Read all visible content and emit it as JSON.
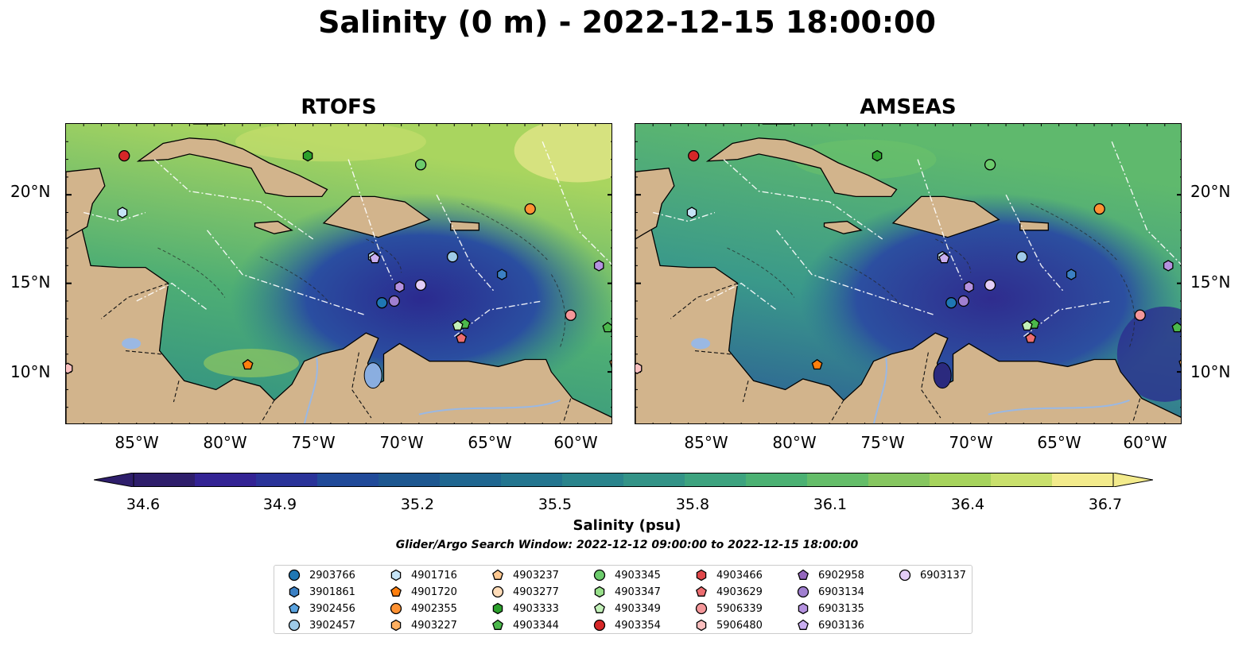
{
  "title": "Salinity (0 m) - 2022-12-15 18:00:00",
  "panels": [
    {
      "title": "RTOFS",
      "variant": "rtofs"
    },
    {
      "title": "AMSEAS",
      "variant": "amseas"
    }
  ],
  "lat_labels": [
    "20°N",
    "15°N",
    "10°N"
  ],
  "lon_labels": [
    "85°W",
    "80°W",
    "75°W",
    "70°W",
    "65°W",
    "60°W"
  ],
  "colorbar": {
    "ticks": [
      "34.6",
      "34.9",
      "35.2",
      "35.5",
      "35.8",
      "36.1",
      "36.4",
      "36.7"
    ],
    "label": "Salinity (psu)",
    "colors": [
      "#2e1e6b",
      "#332394",
      "#2a3399",
      "#204a99",
      "#1d5790",
      "#1f6690",
      "#23758f",
      "#2a848c",
      "#339387",
      "#3da37f",
      "#4bb173",
      "#64bd69",
      "#86c660",
      "#a6d35c",
      "#c9e06d",
      "#f3eb8c"
    ]
  },
  "search_window": "Glider/Argo Search Window: 2022-12-12 09:00:00 to 2022-12-15 18:00:00",
  "legend": [
    {
      "id": "2903766",
      "shape": "circle",
      "color": "#1f77b4"
    },
    {
      "id": "3901861",
      "shape": "hexagon",
      "color": "#3b80c4"
    },
    {
      "id": "3902456",
      "shape": "pentagon",
      "color": "#5aa3e0"
    },
    {
      "id": "3902457",
      "shape": "circle",
      "color": "#9ecae8"
    },
    {
      "id": "4901716",
      "shape": "hexagon",
      "color": "#c6e4f7"
    },
    {
      "id": "4901720",
      "shape": "pentagon",
      "color": "#ff7f0e"
    },
    {
      "id": "4902355",
      "shape": "circle",
      "color": "#ff9233"
    },
    {
      "id": "4903227",
      "shape": "hexagon",
      "color": "#ffb061"
    },
    {
      "id": "4903237",
      "shape": "pentagon",
      "color": "#ffc890"
    },
    {
      "id": "4903277",
      "shape": "circle",
      "color": "#ffdcb8"
    },
    {
      "id": "4903333",
      "shape": "hexagon",
      "color": "#2ca02c"
    },
    {
      "id": "4903344",
      "shape": "pentagon",
      "color": "#4bb84b"
    },
    {
      "id": "4903345",
      "shape": "circle",
      "color": "#6ccb6c"
    },
    {
      "id": "4903347",
      "shape": "hexagon",
      "color": "#98df8a"
    },
    {
      "id": "4903349",
      "shape": "pentagon",
      "color": "#c2f0b8"
    },
    {
      "id": "4903354",
      "shape": "circle",
      "color": "#d62728"
    },
    {
      "id": "4903466",
      "shape": "hexagon",
      "color": "#e0474a"
    },
    {
      "id": "4903629",
      "shape": "pentagon",
      "color": "#ec6d70"
    },
    {
      "id": "5906339",
      "shape": "circle",
      "color": "#f4979a"
    },
    {
      "id": "5906480",
      "shape": "hexagon",
      "color": "#fbbfbf"
    },
    {
      "id": "6902958",
      "shape": "pentagon",
      "color": "#9467bd"
    },
    {
      "id": "6903134",
      "shape": "circle",
      "color": "#a07fd0"
    },
    {
      "id": "6903135",
      "shape": "hexagon",
      "color": "#b592e0"
    },
    {
      "id": "6903136",
      "shape": "pentagon",
      "color": "#c9aef0"
    },
    {
      "id": "6903137",
      "shape": "circle",
      "color": "#e3cdf7"
    }
  ],
  "map_markers": [
    {
      "lon": -85.7,
      "lat": 22.2,
      "shape": "circle",
      "color": "#d62728"
    },
    {
      "lon": -85.8,
      "lat": 19.0,
      "shape": "hexagon",
      "color": "#c6e4f7"
    },
    {
      "lon": -75.3,
      "lat": 22.2,
      "shape": "hexagon",
      "color": "#2ca02c"
    },
    {
      "lon": -68.9,
      "lat": 21.7,
      "shape": "circle",
      "color": "#6ccb6c"
    },
    {
      "lon": -62.7,
      "lat": 19.2,
      "shape": "circle",
      "color": "#ff9233"
    },
    {
      "lon": -71.6,
      "lat": 16.5,
      "shape": "hexagon",
      "color": "#c6e4f7"
    },
    {
      "lon": -71.5,
      "lat": 16.4,
      "shape": "pentagon",
      "color": "#c9aef0"
    },
    {
      "lon": -67.1,
      "lat": 16.5,
      "shape": "circle",
      "color": "#9ecae8"
    },
    {
      "lon": -64.3,
      "lat": 15.5,
      "shape": "hexagon",
      "color": "#3b80c4"
    },
    {
      "lon": -58.8,
      "lat": 16.0,
      "shape": "hexagon",
      "color": "#b592e0"
    },
    {
      "lon": -71.1,
      "lat": 13.9,
      "shape": "circle",
      "color": "#1f77b4"
    },
    {
      "lon": -70.4,
      "lat": 14.0,
      "shape": "circle",
      "color": "#a07fd0"
    },
    {
      "lon": -70.1,
      "lat": 14.8,
      "shape": "hexagon",
      "color": "#b592e0"
    },
    {
      "lon": -68.9,
      "lat": 14.9,
      "shape": "circle",
      "color": "#e3cdf7"
    },
    {
      "lon": -66.4,
      "lat": 12.7,
      "shape": "pentagon",
      "color": "#4bb84b"
    },
    {
      "lon": -66.8,
      "lat": 12.6,
      "shape": "pentagon",
      "color": "#c2f0b8"
    },
    {
      "lon": -66.6,
      "lat": 11.9,
      "shape": "pentagon",
      "color": "#ec6d70"
    },
    {
      "lon": -60.4,
      "lat": 13.2,
      "shape": "circle",
      "color": "#f4979a"
    },
    {
      "lon": -58.3,
      "lat": 12.5,
      "shape": "pentagon",
      "color": "#4bb84b"
    },
    {
      "lon": -78.7,
      "lat": 10.4,
      "shape": "pentagon",
      "color": "#ff7f0e"
    },
    {
      "lon": -88.9,
      "lat": 10.2,
      "shape": "hexagon",
      "color": "#fbbfbf"
    },
    {
      "lon": -57.9,
      "lat": 10.5,
      "shape": "pentagon",
      "color": "#ffb061"
    }
  ]
}
